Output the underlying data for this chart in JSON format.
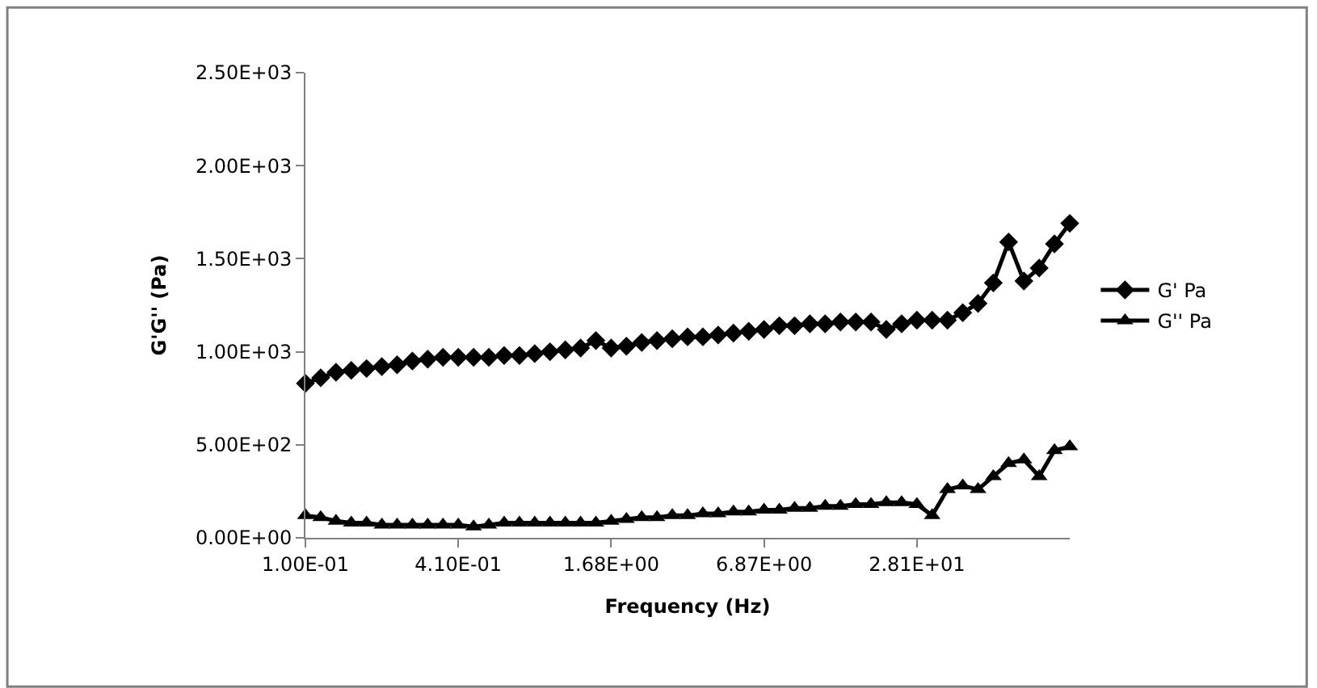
{
  "chart_data": {
    "type": "line",
    "xlabel": "Frequency (Hz)",
    "ylabel": "G'G'' (Pa)",
    "categories": [
      "1.00E-01",
      null,
      null,
      null,
      null,
      null,
      null,
      null,
      null,
      null,
      "4.10E-01",
      null,
      null,
      null,
      null,
      null,
      null,
      null,
      null,
      null,
      "1.68E+00",
      null,
      null,
      null,
      null,
      null,
      null,
      null,
      null,
      null,
      "6.87E+00",
      null,
      null,
      null,
      null,
      null,
      null,
      null,
      null,
      null,
      "2.81E+01",
      null,
      null,
      null,
      null,
      null,
      null,
      null,
      null,
      null,
      null
    ],
    "series": [
      {
        "name": "G' Pa",
        "color": "#000000",
        "marker": "diamond",
        "values": [
          830,
          860,
          890,
          900,
          910,
          920,
          930,
          950,
          960,
          970,
          970,
          970,
          970,
          980,
          980,
          990,
          1000,
          1010,
          1020,
          1060,
          1020,
          1030,
          1050,
          1060,
          1070,
          1080,
          1080,
          1090,
          1100,
          1110,
          1120,
          1140,
          1140,
          1150,
          1150,
          1160,
          1160,
          1160,
          1120,
          1150,
          1170,
          1170,
          1170,
          1210,
          1260,
          1370,
          1590,
          1380,
          1450,
          1580,
          1690
        ]
      },
      {
        "name": "G'' Pa",
        "color": "#000000",
        "marker": "triangle",
        "values": [
          120,
          110,
          90,
          80,
          80,
          70,
          70,
          70,
          70,
          70,
          70,
          60,
          70,
          80,
          80,
          80,
          80,
          80,
          80,
          80,
          90,
          100,
          110,
          110,
          120,
          120,
          130,
          130,
          140,
          140,
          150,
          150,
          160,
          160,
          170,
          170,
          180,
          180,
          190,
          190,
          180,
          120,
          260,
          280,
          260,
          330,
          400,
          420,
          330,
          470,
          490
        ]
      }
    ],
    "ylim": [
      0,
      2500
    ],
    "yticks": [
      {
        "value": 0,
        "label": "0.00E+00"
      },
      {
        "value": 500,
        "label": "5.00E+02"
      },
      {
        "value": 1000,
        "label": "1.00E+03"
      },
      {
        "value": 1500,
        "label": "1.50E+03"
      },
      {
        "value": 2000,
        "label": "2.00E+03"
      },
      {
        "value": 2500,
        "label": "2.50E+03"
      }
    ],
    "legend": "right",
    "line_style": "solid"
  }
}
